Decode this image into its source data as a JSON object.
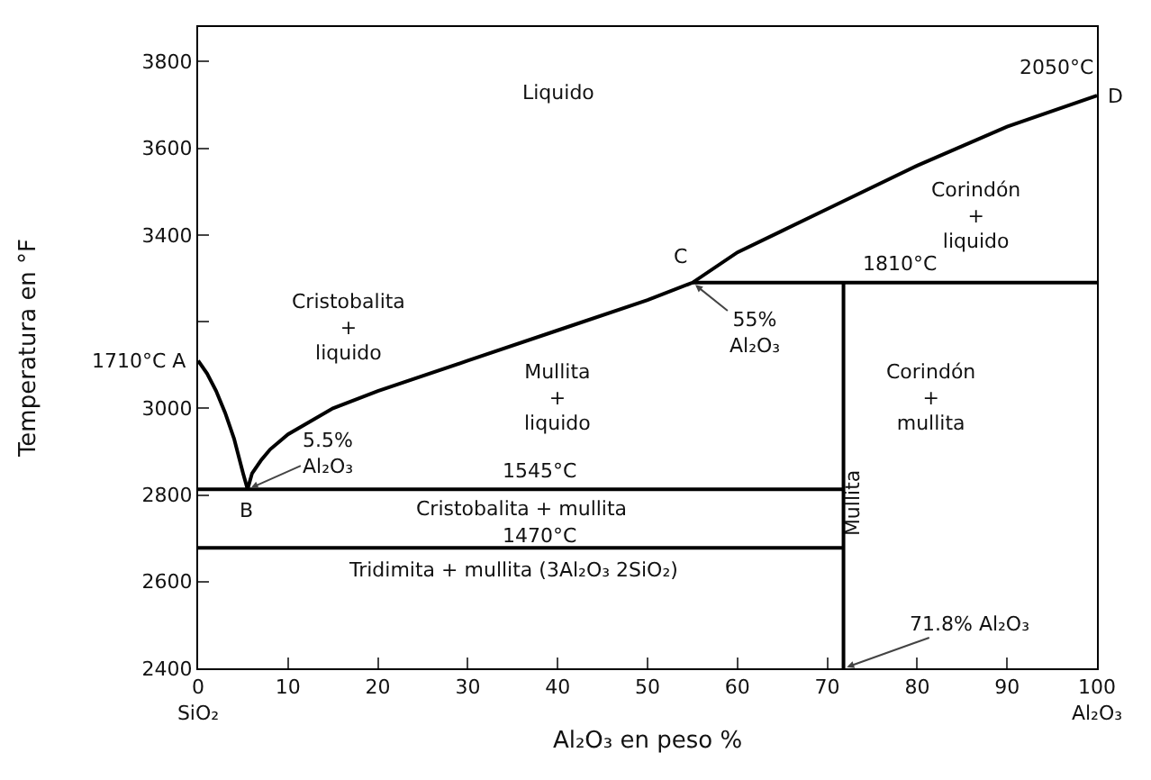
{
  "chart_data": {
    "type": "line",
    "xlabel": "Al₂O₃ en peso %",
    "ylabel": "Temperatura en °F",
    "xlim": [
      0,
      100
    ],
    "ylim": [
      2400,
      3880
    ],
    "xticks": [
      {
        "value": 0,
        "label": "0\nSiO₂"
      },
      10,
      20,
      30,
      40,
      50,
      60,
      70,
      80,
      90,
      {
        "value": 100,
        "label": "100\nAl₂O₃"
      }
    ],
    "yticks": [
      2400,
      2600,
      2800,
      3000,
      {
        "value": 3200,
        "label": null
      },
      3400,
      3600,
      3800
    ],
    "grid": false,
    "marker": "none",
    "line_style": "solid",
    "series": [
      {
        "color": "#000000",
        "x": [
          0,
          1,
          2,
          3,
          4,
          5,
          5.5,
          6,
          7,
          8,
          10,
          15,
          20,
          30,
          40,
          50,
          55,
          60,
          65,
          70,
          80,
          90,
          100
        ],
        "values": [
          3110,
          3080,
          3040,
          2990,
          2930,
          2850,
          2813,
          2850,
          2880,
          2905,
          2940,
          3000,
          3040,
          3110,
          3180,
          3250,
          3290,
          3360,
          3410,
          3460,
          3560,
          3650,
          3722
        ]
      },
      {
        "color": "#000000",
        "x": [
          0,
          71.8
        ],
        "values": [
          2813,
          2813
        ]
      },
      {
        "color": "#000000",
        "x": [
          0,
          71.8
        ],
        "values": [
          2678,
          2678
        ]
      },
      {
        "color": "#000000",
        "x": [
          55,
          100
        ],
        "values": [
          3290,
          3290
        ]
      },
      {
        "color": "#000000",
        "x": [
          71.8,
          71.8
        ],
        "values": [
          2400,
          3290
        ]
      }
    ],
    "annotations": [
      "Liquido",
      "Cristobalita\n+\nliquido",
      "Mullita\n+\nliquido",
      "Corindón\n+\nliquido",
      "Corindón\n+\nmullita",
      "Cristobalita + mullita",
      "Tridimita + mullita (3Al₂O₃ 2SiO₂)",
      "Mullita",
      {
        "text": "1545°C",
        "x": 38,
        "y": 2813
      },
      {
        "text": "1470°C",
        "x": 38,
        "y": 2678
      },
      {
        "text": "B",
        "x": 5.5,
        "y": 2813
      },
      {
        "text": "C",
        "x": 55,
        "y": 3290
      },
      {
        "text": "55%\nAl₂O₃",
        "x": 55,
        "y": 3290
      },
      {
        "text": "5.5%\nAl₂O₃",
        "x": 5.5,
        "y": 2813
      },
      {
        "text": "1810°C",
        "x": 78,
        "y": 3290
      },
      {
        "text": "71.8% Al₂O₃",
        "x": 71.8,
        "y": 2400
      },
      {
        "text": "2050°C",
        "x": 100,
        "y": 3722
      },
      {
        "text": "D",
        "x": 100,
        "y": 3722
      },
      {
        "text": "1710°C A",
        "x": 0,
        "y": 3110
      }
    ]
  }
}
